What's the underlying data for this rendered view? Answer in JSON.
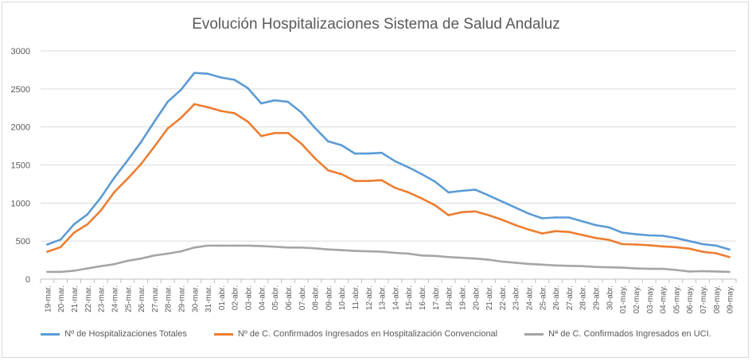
{
  "chart_data": {
    "type": "line",
    "title": "Evolución Hospitalizaciones Sistema de Salud Andaluz",
    "xlabel": "",
    "ylabel": "",
    "ylim": [
      0,
      3000
    ],
    "yticks": [
      "0",
      "500",
      "1000",
      "1500",
      "2000",
      "2500",
      "3000"
    ],
    "grid": true,
    "legend_position": "bottom",
    "categories": [
      "19-mar.",
      "20-mar.",
      "21-mar.",
      "22-mar.",
      "23-mar.",
      "24-mar.",
      "25-mar.",
      "26-mar.",
      "27-mar.",
      "28-mar.",
      "29-mar.",
      "30-mar.",
      "31-mar.",
      "01-abr.",
      "02-abr.",
      "03-abr.",
      "04-abr.",
      "05-abr.",
      "06-abr.",
      "07-abr.",
      "08-abr.",
      "09-abr.",
      "10-abr.",
      "11-abr.",
      "12-abr.",
      "13-abr.",
      "14-abr.",
      "15-abr.",
      "16-abr.",
      "17-abr.",
      "18-abr.",
      "19-abr.",
      "20-abr.",
      "21-abr.",
      "22-abr.",
      "23-abr.",
      "24-abr.",
      "25-abr.",
      "26-abr.",
      "27-abr.",
      "28-abr.",
      "29-abr.",
      "30-abr.",
      "01-may.",
      "02-may.",
      "03-may.",
      "04-may.",
      "05-may.",
      "06-may.",
      "07-may.",
      "08-may.",
      "09-may."
    ],
    "series": [
      {
        "name": "Nº de Hospitalizaciones Totales",
        "color": "#5b9bd5",
        "values": [
          455,
          520,
          720,
          850,
          1070,
          1330,
          1560,
          1800,
          2070,
          2330,
          2490,
          2710,
          2700,
          2650,
          2620,
          2510,
          2310,
          2350,
          2330,
          2190,
          1990,
          1810,
          1760,
          1650,
          1650,
          1660,
          1550,
          1470,
          1380,
          1280,
          1140,
          1160,
          1175,
          1100,
          1020,
          940,
          860,
          800,
          810,
          810,
          760,
          710,
          680,
          610,
          590,
          575,
          570,
          540,
          500,
          460,
          440,
          390
        ]
      },
      {
        "name": "Nº de C. Confirmados Ingresados en Hospitalización Convencional",
        "color": "#ed7d31",
        "values": [
          360,
          420,
          610,
          720,
          900,
          1140,
          1320,
          1510,
          1740,
          1980,
          2120,
          2300,
          2260,
          2210,
          2180,
          2070,
          1880,
          1920,
          1920,
          1780,
          1590,
          1430,
          1380,
          1290,
          1290,
          1300,
          1200,
          1140,
          1060,
          970,
          840,
          880,
          890,
          840,
          780,
          710,
          650,
          600,
          630,
          620,
          580,
          540,
          515,
          460,
          455,
          445,
          430,
          420,
          400,
          360,
          340,
          290
        ]
      },
      {
        "name": "Nª de C. Confirmados Ingresados en UCI.",
        "color": "#a5a5a5",
        "values": [
          95,
          95,
          110,
          140,
          170,
          195,
          240,
          270,
          310,
          335,
          365,
          415,
          440,
          440,
          440,
          440,
          435,
          425,
          415,
          415,
          405,
          390,
          380,
          370,
          365,
          360,
          345,
          335,
          310,
          305,
          290,
          280,
          270,
          255,
          230,
          215,
          200,
          190,
          180,
          175,
          170,
          160,
          155,
          150,
          140,
          135,
          135,
          120,
          100,
          105,
          100,
          95
        ]
      }
    ]
  }
}
